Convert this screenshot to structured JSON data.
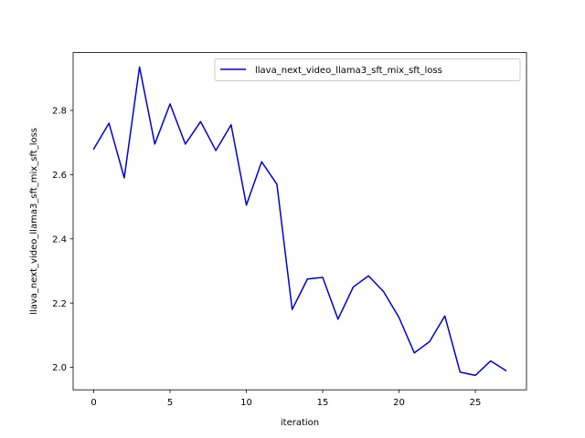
{
  "chart_data": {
    "type": "line",
    "title": "",
    "xlabel": "iteration",
    "ylabel": "llava_next_video_llama3_sft_mix_sft_loss",
    "xlim": [
      -1.35,
      28.35
    ],
    "ylim": [
      1.93,
      2.98
    ],
    "xticks": [
      0,
      5,
      10,
      15,
      20,
      25
    ],
    "xtick_labels": [
      "0",
      "5",
      "10",
      "15",
      "20",
      "25"
    ],
    "yticks": [
      2.0,
      2.2,
      2.4,
      2.6,
      2.8
    ],
    "ytick_labels": [
      "2.0",
      "2.2",
      "2.4",
      "2.6",
      "2.8"
    ],
    "grid": false,
    "legend_position": "top-right",
    "series": [
      {
        "name": "llava_next_video_llama3_sft_mix_sft_loss",
        "color": "#0000cc",
        "x": [
          0,
          1,
          2,
          3,
          4,
          5,
          6,
          7,
          8,
          9,
          10,
          11,
          12,
          13,
          14,
          15,
          16,
          17,
          18,
          19,
          20,
          21,
          22,
          23,
          24,
          25,
          26,
          27
        ],
        "y": [
          2.68,
          2.76,
          2.59,
          2.935,
          2.695,
          2.82,
          2.695,
          2.765,
          2.675,
          2.755,
          2.505,
          2.64,
          2.57,
          2.18,
          2.275,
          2.28,
          2.15,
          2.25,
          2.285,
          2.235,
          2.155,
          2.045,
          2.08,
          2.16,
          1.985,
          1.975,
          2.02,
          1.99
        ]
      }
    ]
  }
}
